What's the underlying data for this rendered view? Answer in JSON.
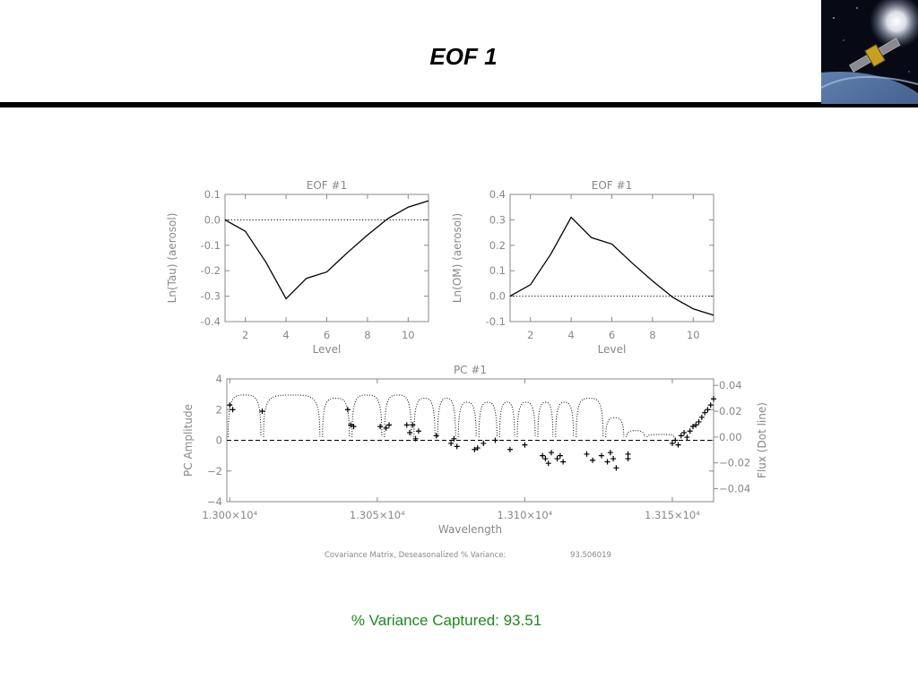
{
  "slide": {
    "title": "EOF 1",
    "variance_caption": "% Variance Captured: 93.51"
  },
  "colors": {
    "axis": "#888888",
    "line": "#000000",
    "caption": "#1d8a1d"
  },
  "logo": {
    "icon": "satellite-over-earth-icon"
  },
  "figure_caption": {
    "label": "Covariance Matrix, Deseasonalized  % Variance:",
    "value": "93.506019"
  },
  "chart_data": [
    {
      "type": "line",
      "title": "EOF  #1",
      "xlabel": "Level",
      "ylabel": "Ln(Tau) (aerosol)",
      "xlim": [
        1,
        11
      ],
      "ylim": [
        -0.4,
        0.1
      ],
      "xticks": [
        2,
        4,
        6,
        8,
        10
      ],
      "xtick_labels": [
        "2",
        "4",
        "6",
        "8",
        "10"
      ],
      "yticks": [
        -0.4,
        -0.3,
        -0.2,
        -0.1,
        0.0,
        0.1
      ],
      "ytick_labels": [
        "-0.4",
        "-0.3",
        "-0.2",
        "-0.1",
        "0.0",
        "0.1"
      ],
      "zero_line": "dotted",
      "x": [
        1,
        2,
        3,
        4,
        5,
        6,
        7,
        8,
        9,
        10,
        11
      ],
      "y": [
        0.0,
        -0.045,
        -0.165,
        -0.31,
        -0.23,
        -0.205,
        -0.13,
        -0.06,
        0.005,
        0.05,
        0.075
      ]
    },
    {
      "type": "line",
      "title": "EOF  #1",
      "xlabel": "Level",
      "ylabel": "Ln(OM) (aerosol)",
      "xlim": [
        1,
        11
      ],
      "ylim": [
        -0.1,
        0.4
      ],
      "xticks": [
        2,
        4,
        6,
        8,
        10
      ],
      "xtick_labels": [
        "2",
        "4",
        "6",
        "8",
        "10"
      ],
      "yticks": [
        -0.1,
        0.0,
        0.1,
        0.2,
        0.3,
        0.4
      ],
      "ytick_labels": [
        "-0.1",
        "0.0",
        "0.1",
        "0.2",
        "0.3",
        "0.4"
      ],
      "zero_line": "dotted",
      "x": [
        1,
        2,
        3,
        4,
        5,
        6,
        7,
        8,
        9,
        10,
        11
      ],
      "y": [
        0.0,
        0.045,
        0.165,
        0.31,
        0.23,
        0.205,
        0.13,
        0.06,
        -0.005,
        -0.05,
        -0.075
      ]
    },
    {
      "type": "scatter",
      "title": "PC  #1",
      "xlabel": "Wavelength",
      "ylabel": "PC Amplitude",
      "y2label": "Flux (Dot line)",
      "xlim": [
        12999,
        13164
      ],
      "ylim": [
        -4,
        4
      ],
      "y2lim": [
        -0.05,
        0.045
      ],
      "xticks": [
        13000,
        13050,
        13100,
        13150
      ],
      "xtick_labels": [
        "1.300×10⁴",
        "1.305×10⁴",
        "1.310×10⁴",
        "1.315×10⁴"
      ],
      "yticks": [
        -4,
        -2,
        0,
        2,
        4
      ],
      "ytick_labels": [
        "−4",
        "−2",
        "0",
        "2",
        "4"
      ],
      "y2ticks": [
        -0.04,
        -0.02,
        0.0,
        0.02,
        0.04
      ],
      "y2tick_labels": [
        "−0.04",
        "−0.02",
        "0.00",
        "0.02",
        "0.04"
      ],
      "zero_line": "dashed",
      "points": [
        [
          13000,
          2.3
        ],
        [
          13001,
          2.0
        ],
        [
          13011,
          1.9
        ],
        [
          13041,
          1.0
        ],
        [
          13042,
          0.9
        ],
        [
          13040,
          2.0
        ],
        [
          13051,
          0.9
        ],
        [
          13053,
          0.8
        ],
        [
          13054,
          1.0
        ],
        [
          13060,
          1.0
        ],
        [
          13061,
          0.5
        ],
        [
          13062,
          1.0
        ],
        [
          13063,
          0.1
        ],
        [
          13064,
          0.6
        ],
        [
          13070,
          0.3
        ],
        [
          13075,
          -0.2
        ],
        [
          13076,
          0.1
        ],
        [
          13077,
          -0.4
        ],
        [
          13083,
          -0.6
        ],
        [
          13084,
          -0.5
        ],
        [
          13086,
          -0.2
        ],
        [
          13090,
          0.0
        ],
        [
          13095,
          -0.6
        ],
        [
          13100,
          -0.3
        ],
        [
          13106,
          -1.0
        ],
        [
          13107,
          -1.2
        ],
        [
          13108,
          -1.5
        ],
        [
          13109,
          -0.8
        ],
        [
          13111,
          -1.2
        ],
        [
          13112,
          -1.0
        ],
        [
          13113,
          -1.4
        ],
        [
          13121,
          -0.9
        ],
        [
          13123,
          -1.3
        ],
        [
          13126,
          -1.0
        ],
        [
          13128,
          -1.4
        ],
        [
          13129,
          -0.8
        ],
        [
          13130,
          -1.2
        ],
        [
          13131,
          -1.8
        ],
        [
          13135,
          -0.9
        ],
        [
          13135,
          -1.2
        ],
        [
          13150,
          -0.2
        ],
        [
          13151,
          0.0
        ],
        [
          13152,
          -0.3
        ],
        [
          13153,
          0.3
        ],
        [
          13154,
          0.5
        ],
        [
          13155,
          0.2
        ],
        [
          13156,
          0.6
        ],
        [
          13157,
          0.9
        ],
        [
          13158,
          1.0
        ],
        [
          13159,
          1.2
        ],
        [
          13160,
          1.5
        ],
        [
          13161,
          1.8
        ],
        [
          13162,
          2.0
        ],
        [
          13163,
          2.3
        ],
        [
          13164,
          2.7
        ]
      ],
      "flux_series": {
        "name": "Flux (Dot line)",
        "style": "dotted",
        "troughs": [
          [
            12999,
            0.0
          ],
          [
            13011,
            0.0
          ],
          [
            13031,
            0.0
          ],
          [
            13041,
            0.0
          ],
          [
            13052,
            0.0
          ],
          [
            13062,
            0.0
          ],
          [
            13070,
            0.0
          ],
          [
            13077,
            0.0
          ],
          [
            13084,
            0.0
          ],
          [
            13091,
            0.0
          ],
          [
            13097,
            0.0
          ],
          [
            13104,
            0.0
          ],
          [
            13110,
            0.0
          ],
          [
            13117,
            0.0
          ],
          [
            13127,
            0.0
          ],
          [
            13134,
            0.0
          ],
          [
            13141,
            0.0
          ],
          [
            13151,
            0.0
          ]
        ],
        "peaks": [
          0.0325,
          0.0325,
          0.03,
          0.0325,
          0.0325,
          0.03,
          0.03,
          0.027,
          0.027,
          0.027,
          0.027,
          0.027,
          0.027,
          0.03,
          0.015,
          0.005,
          0.002
        ]
      }
    }
  ]
}
